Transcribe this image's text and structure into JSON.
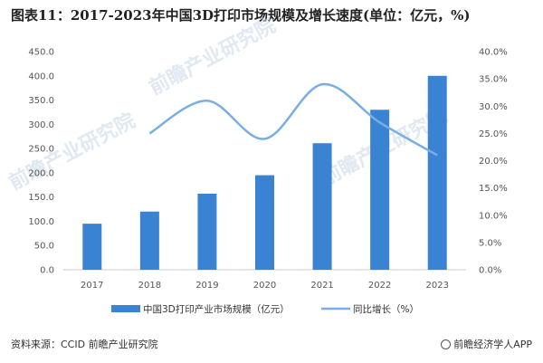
{
  "title": "图表11：2017-2023年中国3D打印市场规模及增长速度(单位：亿元，%)",
  "source": "资料来源：CCID 前瞻产业研究院",
  "brand": "前瞻经济学人APP",
  "watermark": "前瞻产业研究院",
  "colors": {
    "bar": "#3a83d3",
    "line": "#7aaee3",
    "axis": "#cccccc"
  },
  "chart_data": {
    "type": "bar",
    "categories": [
      "2017",
      "2018",
      "2019",
      "2020",
      "2021",
      "2022",
      "2023"
    ],
    "series": [
      {
        "name": "中国3D打印产业市场规模（亿元）",
        "type": "bar",
        "axis": "left",
        "values": [
          95,
          120,
          157,
          195,
          261,
          330,
          400
        ]
      },
      {
        "name": "同比增长（%）",
        "type": "line",
        "axis": "right",
        "values": [
          null,
          25.0,
          31.0,
          24.0,
          34.0,
          27.0,
          21.0
        ]
      }
    ],
    "y_left": {
      "min": 0,
      "max": 450,
      "step": 50,
      "ticks": [
        "0.0",
        "50.0",
        "100.0",
        "150.0",
        "200.0",
        "250.0",
        "300.0",
        "350.0",
        "400.0",
        "450.0"
      ]
    },
    "y_right": {
      "min": 0,
      "max": 40,
      "step": 5,
      "ticks": [
        "0.0%",
        "5.0%",
        "10.0%",
        "15.0%",
        "20.0%",
        "25.0%",
        "30.0%",
        "35.0%",
        "40.0%"
      ]
    },
    "legend_position": "bottom"
  }
}
